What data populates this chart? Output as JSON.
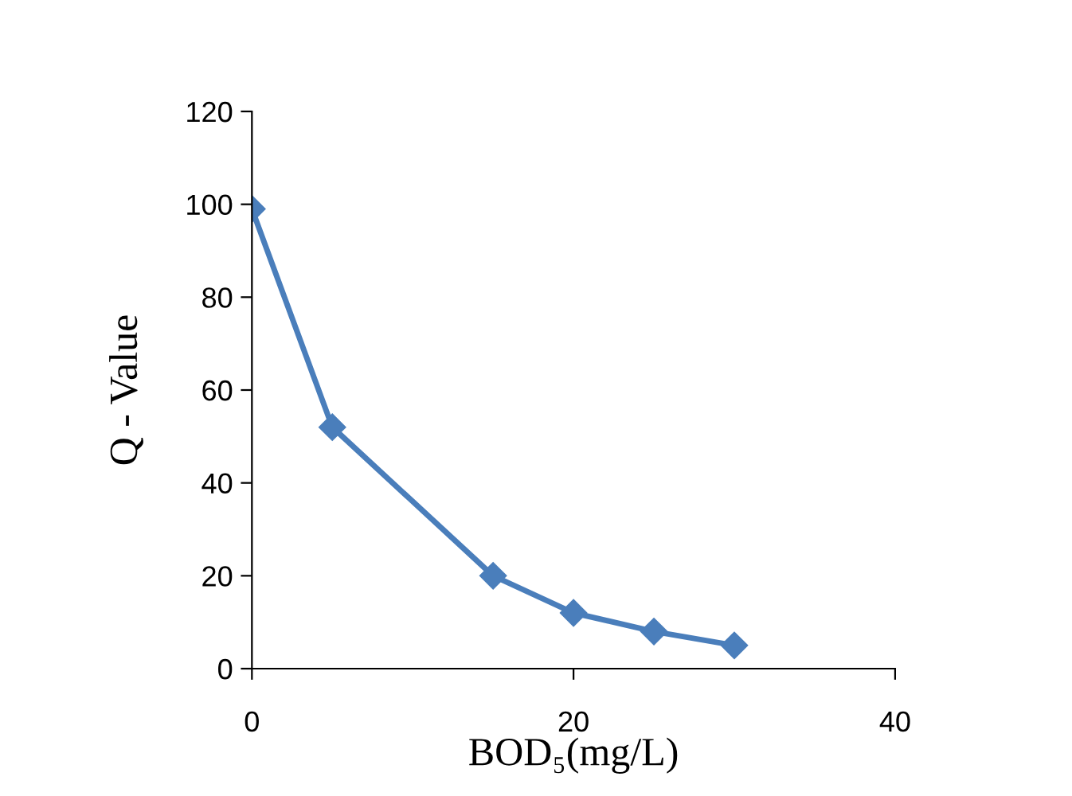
{
  "chart_data": {
    "type": "line",
    "xlabel": "BOD₅(mg/L)",
    "ylabel": "Q - Value",
    "x": [
      0,
      5,
      15,
      20,
      25,
      30
    ],
    "series": [
      {
        "color": "#4a7ebb",
        "values": [
          99,
          52,
          20,
          12,
          8,
          5
        ]
      }
    ],
    "xlim": [
      0,
      40
    ],
    "xticks": [
      0,
      20,
      40
    ],
    "ylim": [
      0,
      120
    ],
    "yticks": [
      0,
      20,
      40,
      60,
      80,
      100,
      120
    ],
    "marker": "diamond",
    "line_style": "solid",
    "grid": false,
    "legend": false
  }
}
